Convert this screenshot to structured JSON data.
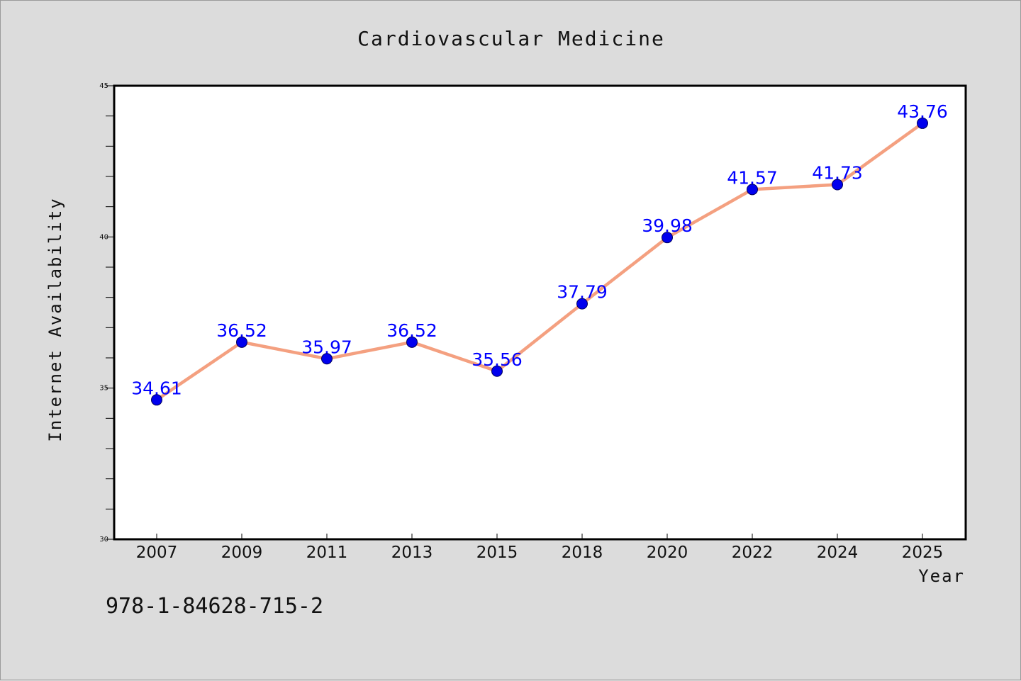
{
  "chart_data": {
    "type": "line",
    "title": "Cardiovascular Medicine",
    "xlabel": "Year",
    "ylabel": "Internet Availability",
    "categories": [
      "2007",
      "2009",
      "2011",
      "2013",
      "2015",
      "2018",
      "2020",
      "2022",
      "2024",
      "2025"
    ],
    "series": [
      {
        "values": [
          34.61,
          36.52,
          35.97,
          36.52,
          35.56,
          37.79,
          39.98,
          41.57,
          41.73,
          43.76
        ],
        "color": "#f4a080",
        "marker_color": "#0000ee"
      }
    ],
    "data_labels": [
      "34.61",
      "36.52",
      "35.97",
      "36.52",
      "35.56",
      "37.79",
      "39.98",
      "41.57",
      "41.73",
      "43.76"
    ],
    "ylim": [
      30,
      45
    ],
    "y_ticks": [
      "30",
      "35",
      "40",
      "45"
    ],
    "y_minor_step": 1,
    "grid": false,
    "legend": "none"
  },
  "annotation": "978-1-84628-715-2",
  "colors": {
    "background": "#dcdcdc",
    "plot_background": "#ffffff",
    "data_label": "#0000ff"
  }
}
